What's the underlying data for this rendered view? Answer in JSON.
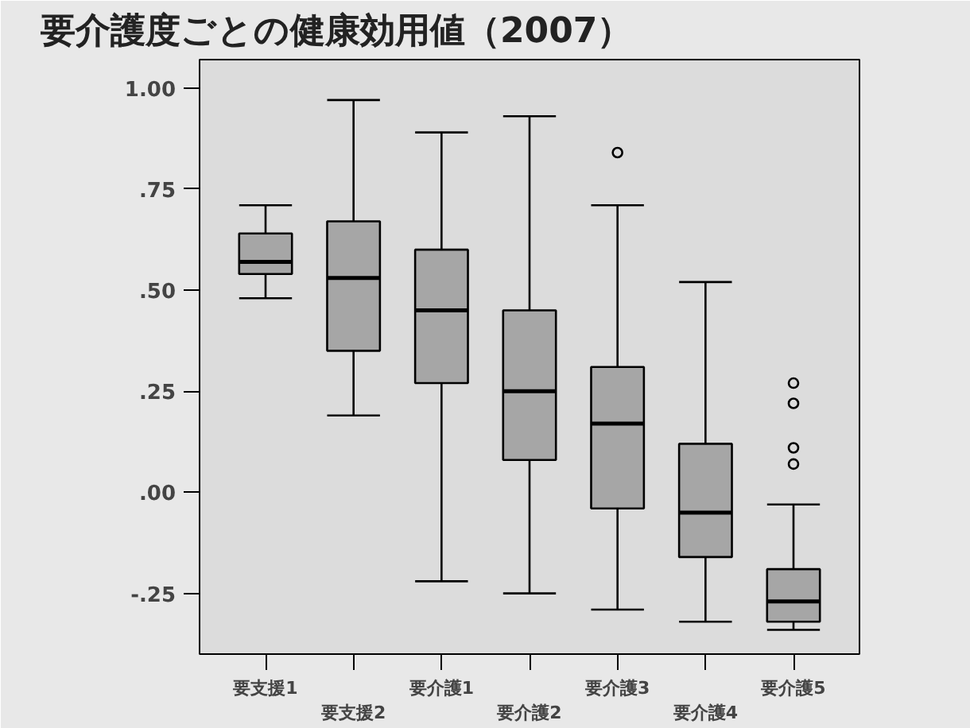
{
  "chart_data": {
    "type": "box",
    "title": "要介護度ごとの健康効用値（2007）",
    "categories": [
      "要支援1",
      "要支援2",
      "要介護1",
      "要介護2",
      "要介護3",
      "要介護4",
      "要介護5"
    ],
    "color": "#a6a6a6",
    "boxes": [
      {
        "low": 0.48,
        "q1": 0.54,
        "median": 0.57,
        "q3": 0.64,
        "high": 0.71
      },
      {
        "low": 0.19,
        "q1": 0.35,
        "median": 0.53,
        "q3": 0.67,
        "high": 0.97
      },
      {
        "low": -0.22,
        "q1": 0.27,
        "median": 0.45,
        "q3": 0.6,
        "high": 0.89
      },
      {
        "low": -0.25,
        "q1": 0.08,
        "median": 0.25,
        "q3": 0.45,
        "high": 0.93
      },
      {
        "low": -0.29,
        "q1": -0.04,
        "median": 0.17,
        "q3": 0.31,
        "high": 0.71,
        "outliers": [
          0.84
        ]
      },
      {
        "low": -0.32,
        "q1": -0.16,
        "median": -0.05,
        "q3": 0.12,
        "high": 0.52
      },
      {
        "low": -0.34,
        "q1": -0.32,
        "median": -0.27,
        "q3": -0.19,
        "high": -0.03,
        "outliers": [
          0.27,
          0.22,
          0.11,
          0.07
        ]
      }
    ],
    "ylim": [
      -0.4,
      1.07
    ],
    "yticks": [
      {
        "value": 1.0,
        "label": "1.00"
      },
      {
        "value": 0.75,
        "label": ".75"
      },
      {
        "value": 0.5,
        "label": ".50"
      },
      {
        "value": 0.25,
        "label": ".25"
      },
      {
        "value": 0.0,
        "label": ".00"
      },
      {
        "value": -0.25,
        "label": "-.25"
      }
    ],
    "grid": false
  }
}
